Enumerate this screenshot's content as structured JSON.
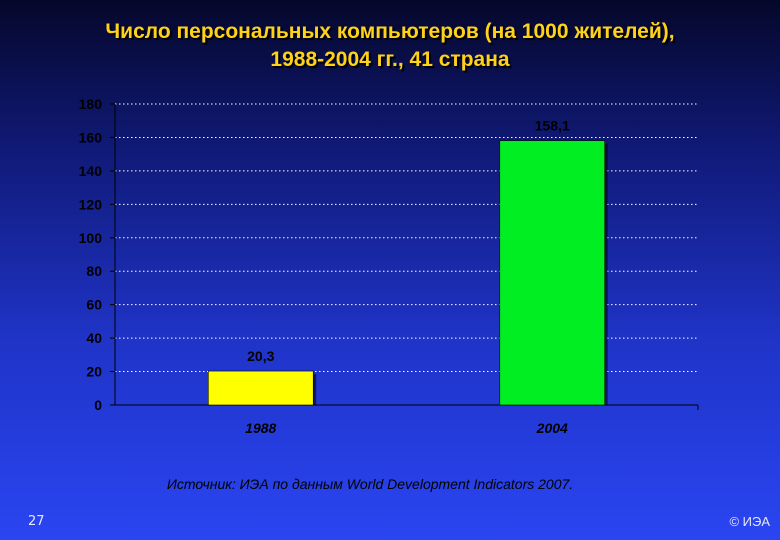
{
  "title_line1": "Число персональных компьютеров (на 1000 жителей),",
  "title_line2": "1988-2004 гг., 41 страна",
  "source": "Источник: ИЭА по данным World Development Indicators 2007.",
  "page_number": "27",
  "copyright": "© ИЭА",
  "colors": {
    "bar_1988": "#ffff00",
    "bar_2004": "#00ee22",
    "axis_text": "#000000",
    "grid": "#ffffff"
  },
  "chart_data": {
    "type": "bar",
    "categories": [
      "1988",
      "2004"
    ],
    "values": [
      20.3,
      158.1
    ],
    "value_labels": [
      "20,3",
      "158,1"
    ],
    "yticks": [
      0,
      20,
      40,
      60,
      80,
      100,
      120,
      140,
      160,
      180
    ],
    "ylim": [
      0,
      180
    ],
    "grid": true,
    "grid_style": "dotted",
    "title": "Число персональных компьютеров (на 1000 жителей), 1988-2004 гг., 41 страна",
    "xlabel": "",
    "ylabel": ""
  }
}
